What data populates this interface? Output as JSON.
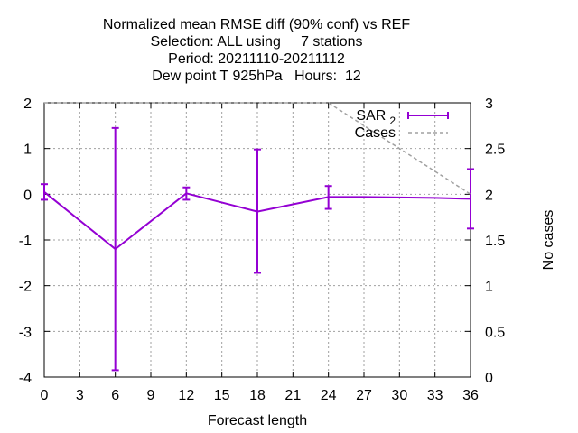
{
  "chart_data": {
    "type": "line",
    "title": [
      "Normalized mean RMSE diff (90% conf) vs REF",
      "Selection: ALL using     7 stations",
      "Period: 20211110-20211112",
      "Dew point T 925hPa   Hours:  12"
    ],
    "xlabel": "Forecast length",
    "ylabel": "",
    "y2label": "No cases",
    "xlim": [
      0,
      36
    ],
    "ylim": [
      -4,
      2
    ],
    "y2lim": [
      0,
      3
    ],
    "xticks": [
      0,
      3,
      6,
      9,
      12,
      15,
      18,
      21,
      24,
      27,
      30,
      33,
      36
    ],
    "yticks": [
      -4,
      -3,
      -2,
      -1,
      0,
      1,
      2
    ],
    "y2ticks": [
      "0",
      "0.5",
      "1",
      "1.5",
      "2",
      "2.5",
      "3"
    ],
    "y2tick_values": [
      0,
      0.5,
      1,
      1.5,
      2,
      2.5,
      3
    ],
    "grid": true,
    "legend_position": "top-right",
    "series": [
      {
        "name": "SAR",
        "name_sub": "2",
        "color": "#9400d3",
        "axis": "y",
        "x": [
          0,
          6,
          12,
          18,
          24,
          27,
          33,
          36
        ],
        "values": [
          0.05,
          -1.2,
          0.02,
          -0.38,
          -0.06,
          -0.06,
          -0.08,
          -0.1
        ],
        "err_low": [
          -0.12,
          -3.85,
          -0.12,
          -1.72,
          -0.32,
          null,
          null,
          -0.75
        ],
        "err_high": [
          0.22,
          1.45,
          0.15,
          0.98,
          0.18,
          null,
          null,
          0.55
        ]
      },
      {
        "name": "Cases",
        "color": "#a0a0a0",
        "style": "dashed",
        "axis": "y2",
        "x": [
          0,
          24,
          36
        ],
        "values": [
          3,
          3,
          2
        ]
      }
    ]
  }
}
